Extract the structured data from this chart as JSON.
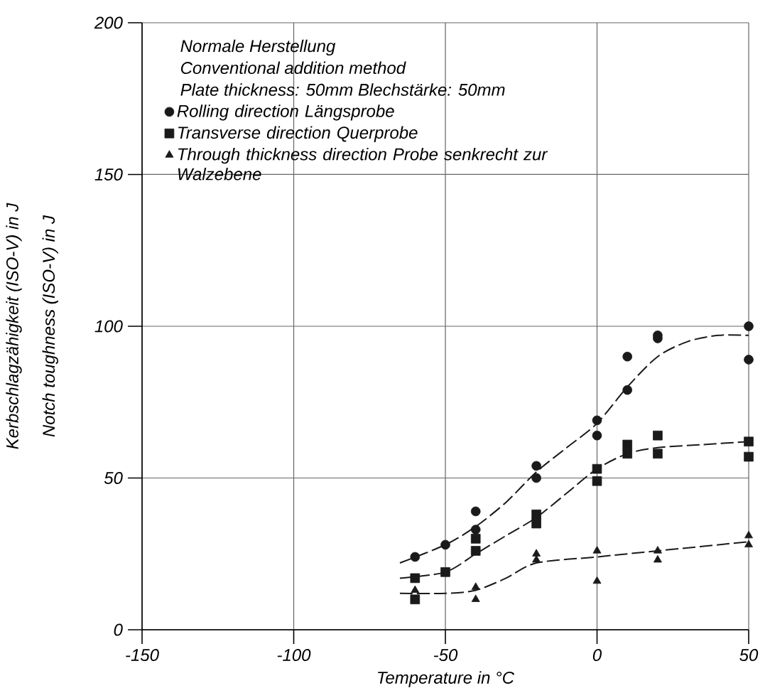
{
  "chart_data": {
    "type": "scatter",
    "xlabel": "Temperature in °C",
    "ylabel": "Kerbschlagzähigkeit (ISO-V) in J",
    "annotations": [
      "Notch toughness (ISO-V) in J",
      "Normale Herstellung",
      "Conventional addition method",
      "Plate thickness: 50mm   Blechstärke: 50mm"
    ],
    "xlim": [
      -150,
      50
    ],
    "ylim": [
      0,
      200
    ],
    "xticks": [
      -150,
      -100,
      -50,
      0,
      50
    ],
    "yticks": [
      0,
      50,
      100,
      150,
      200
    ],
    "grid": true,
    "legend": "top left",
    "series": [
      {
        "name": "Rolling direction   Längsprobe",
        "color": "#1a1a1a",
        "marker": "circle",
        "x": [
          -60,
          -50,
          -40,
          -40,
          -20,
          -20,
          0,
          0,
          10,
          10,
          20,
          20,
          50,
          50
        ],
        "values": [
          24,
          28,
          39,
          33,
          54,
          50,
          69,
          64,
          90,
          79,
          97,
          96,
          100,
          89
        ]
      },
      {
        "name": "Transverse direction   Querprobe",
        "color": "#1a1a1a",
        "marker": "square",
        "x": [
          -60,
          -60,
          -50,
          -40,
          -40,
          -20,
          -20,
          0,
          0,
          10,
          10,
          20,
          20,
          50,
          50
        ],
        "values": [
          17,
          10,
          19,
          30,
          26,
          38,
          35,
          53,
          49,
          61,
          58,
          64,
          58,
          62,
          57
        ]
      },
      {
        "name": "Through thickness direction   Probe senkrecht zur Walzebene",
        "color": "#1a1a1a",
        "marker": "triangle",
        "x": [
          -60,
          -40,
          -40,
          -20,
          -20,
          0,
          0,
          20,
          20,
          50,
          50
        ],
        "values": [
          13,
          14,
          10,
          25,
          23,
          26,
          16,
          26,
          23,
          31,
          28
        ]
      },
      {
        "type": "line",
        "color": "#1a1a1a",
        "line_style": "dashed",
        "x": [
          -65,
          -50,
          -40,
          -30,
          -20,
          -10,
          0,
          10,
          20,
          30,
          40,
          50
        ],
        "values": [
          22,
          28,
          34,
          42,
          52,
          60,
          68,
          80,
          90,
          95,
          97,
          97
        ]
      },
      {
        "type": "line",
        "color": "#1a1a1a",
        "line_style": "dashed",
        "x": [
          -65,
          -50,
          -40,
          -30,
          -20,
          -10,
          0,
          10,
          20,
          35,
          50
        ],
        "values": [
          17,
          19,
          25,
          31,
          37,
          45,
          53,
          58,
          60,
          61,
          62
        ]
      },
      {
        "type": "line",
        "color": "#1a1a1a",
        "line_style": "dashed",
        "x": [
          -65,
          -50,
          -40,
          -30,
          -20,
          0,
          20,
          50
        ],
        "values": [
          12,
          12,
          13,
          17,
          22,
          24,
          26,
          29
        ]
      }
    ]
  }
}
